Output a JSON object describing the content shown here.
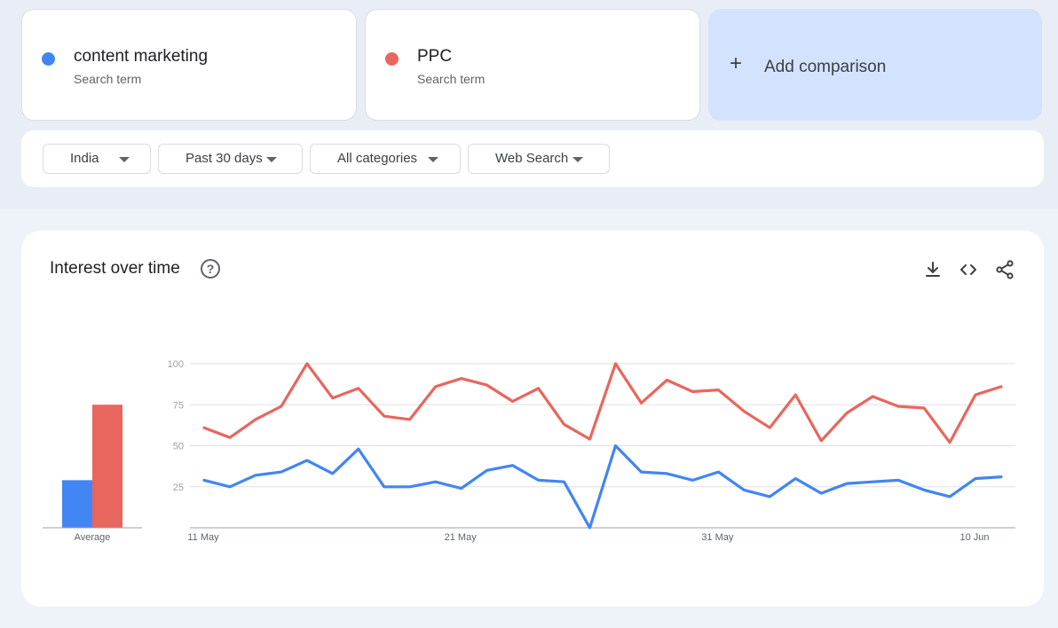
{
  "terms": [
    {
      "name": "content marketing",
      "subtitle": "Search term",
      "color": "#4285f4"
    },
    {
      "name": "PPC",
      "subtitle": "Search term",
      "color": "#e8665e"
    }
  ],
  "add_comparison": {
    "icon": "plus-icon",
    "label": "Add comparison"
  },
  "filters": {
    "region": "India",
    "period": "Past 30 days",
    "category": "All categories",
    "search_type": "Web Search"
  },
  "panel": {
    "title": "Interest over time",
    "help_icon": "help-circle-icon",
    "actions": [
      "download-icon",
      "embed-icon",
      "share-icon"
    ]
  },
  "chart_data": [
    {
      "type": "line",
      "ylim": [
        0,
        100
      ],
      "y_ticks": [
        "100",
        "75",
        "50",
        "25"
      ],
      "x_ticks": [
        {
          "label": "11 May",
          "index": 0
        },
        {
          "label": "21 May",
          "index": 10
        },
        {
          "label": "31 May",
          "index": 20
        },
        {
          "label": "10 Jun",
          "index": 30
        }
      ],
      "grid": true,
      "series": [
        {
          "name": "content marketing",
          "color": "#4285f4",
          "values": [
            29,
            25,
            32,
            34,
            41,
            33,
            48,
            25,
            25,
            28,
            24,
            35,
            38,
            29,
            28,
            0,
            50,
            34,
            33,
            29,
            34,
            23,
            19,
            30,
            21,
            27,
            28,
            29,
            23,
            19,
            30,
            31
          ]
        },
        {
          "name": "PPC",
          "color": "#e8665e",
          "values": [
            61,
            55,
            66,
            74,
            100,
            79,
            85,
            68,
            66,
            86,
            91,
            87,
            77,
            85,
            63,
            54,
            100,
            76,
            90,
            83,
            84,
            71,
            61,
            81,
            53,
            70,
            80,
            74,
            73,
            52,
            81,
            86
          ]
        }
      ]
    },
    {
      "type": "bar",
      "categories": [
        "Average"
      ],
      "ylim": [
        0,
        100
      ],
      "series": [
        {
          "name": "content marketing",
          "color": "#4285f4",
          "values": [
            29
          ]
        },
        {
          "name": "PPC",
          "color": "#e8665e",
          "values": [
            75
          ]
        }
      ]
    }
  ]
}
